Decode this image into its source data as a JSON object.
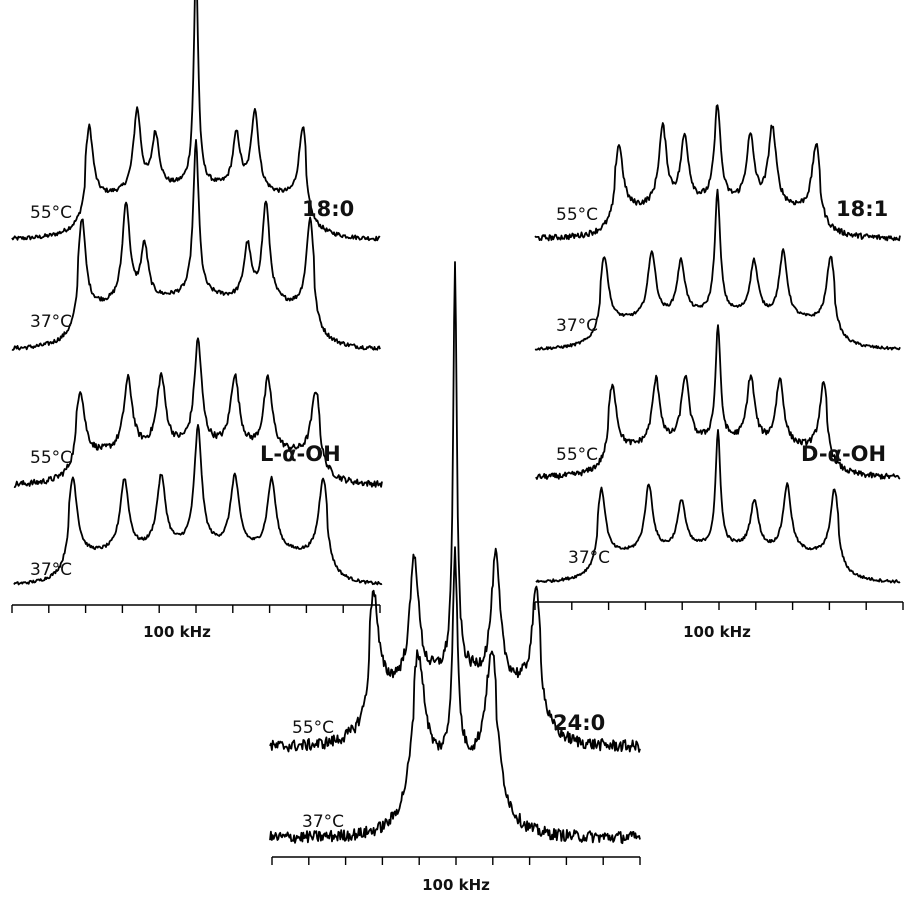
{
  "chart_data": [
    {
      "type": "line",
      "name": "18:0",
      "xlabel": "100 kHz",
      "major_ticks": 10,
      "spectra": [
        {
          "label": "55°C",
          "baseline": 0.02,
          "noise": 0.006,
          "peaks": [
            {
              "x": -0.29,
              "h": 0.4,
              "w": 0.012
            },
            {
              "x": -0.16,
              "h": 0.45,
              "w": 0.012
            },
            {
              "x": -0.11,
              "h": 0.3,
              "w": 0.012
            },
            {
              "x": 0.0,
              "h": 1.25,
              "w": 0.007
            },
            {
              "x": 0.11,
              "h": 0.3,
              "w": 0.012
            },
            {
              "x": 0.16,
              "h": 0.45,
              "w": 0.012
            },
            {
              "x": 0.29,
              "h": 0.4,
              "w": 0.012
            }
          ]
        },
        {
          "label": "37°C",
          "baseline": 0.02,
          "noise": 0.006,
          "peaks": [
            {
              "x": -0.31,
              "h": 0.5,
              "w": 0.012
            },
            {
              "x": -0.19,
              "h": 0.55,
              "w": 0.012
            },
            {
              "x": -0.14,
              "h": 0.3,
              "w": 0.012
            },
            {
              "x": 0.0,
              "h": 0.85,
              "w": 0.009
            },
            {
              "x": 0.14,
              "h": 0.3,
              "w": 0.012
            },
            {
              "x": 0.19,
              "h": 0.55,
              "w": 0.012
            },
            {
              "x": 0.31,
              "h": 0.5,
              "w": 0.012
            }
          ]
        }
      ]
    },
    {
      "type": "line",
      "name": "L-α-OH",
      "xlabel": "100 kHz",
      "major_ticks": 10,
      "spectra": [
        {
          "label": "55°C",
          "baseline": 0.02,
          "noise": 0.012,
          "peaks": [
            {
              "x": -0.32,
              "h": 0.5,
              "w": 0.014
            },
            {
              "x": -0.19,
              "h": 0.55,
              "w": 0.014
            },
            {
              "x": -0.1,
              "h": 0.55,
              "w": 0.014
            },
            {
              "x": 0.0,
              "h": 0.8,
              "w": 0.012
            },
            {
              "x": 0.1,
              "h": 0.55,
              "w": 0.014
            },
            {
              "x": 0.19,
              "h": 0.55,
              "w": 0.014
            },
            {
              "x": 0.32,
              "h": 0.5,
              "w": 0.014
            }
          ]
        },
        {
          "label": "37°C",
          "baseline": 0.02,
          "noise": 0.006,
          "peaks": [
            {
              "x": -0.34,
              "h": 0.6,
              "w": 0.014
            },
            {
              "x": -0.2,
              "h": 0.55,
              "w": 0.014
            },
            {
              "x": -0.1,
              "h": 0.55,
              "w": 0.014
            },
            {
              "x": 0.0,
              "h": 0.9,
              "w": 0.012
            },
            {
              "x": 0.1,
              "h": 0.55,
              "w": 0.014
            },
            {
              "x": 0.2,
              "h": 0.55,
              "w": 0.014
            },
            {
              "x": 0.34,
              "h": 0.6,
              "w": 0.014
            }
          ]
        }
      ]
    },
    {
      "type": "line",
      "name": "18:1",
      "xlabel": "100 kHz",
      "major_ticks": 10,
      "spectra": [
        {
          "label": "55°C",
          "baseline": 0.02,
          "noise": 0.012,
          "peaks": [
            {
              "x": -0.27,
              "h": 0.55,
              "w": 0.013
            },
            {
              "x": -0.15,
              "h": 0.65,
              "w": 0.013
            },
            {
              "x": -0.09,
              "h": 0.55,
              "w": 0.013
            },
            {
              "x": 0.0,
              "h": 0.8,
              "w": 0.01
            },
            {
              "x": 0.09,
              "h": 0.55,
              "w": 0.013
            },
            {
              "x": 0.15,
              "h": 0.65,
              "w": 0.013
            },
            {
              "x": 0.27,
              "h": 0.55,
              "w": 0.013
            }
          ]
        },
        {
          "label": "37°C",
          "baseline": 0.02,
          "noise": 0.006,
          "peaks": [
            {
              "x": -0.31,
              "h": 0.55,
              "w": 0.013
            },
            {
              "x": -0.18,
              "h": 0.55,
              "w": 0.013
            },
            {
              "x": -0.1,
              "h": 0.45,
              "w": 0.013
            },
            {
              "x": 0.0,
              "h": 1.0,
              "w": 0.009
            },
            {
              "x": 0.1,
              "h": 0.45,
              "w": 0.013
            },
            {
              "x": 0.18,
              "h": 0.55,
              "w": 0.013
            },
            {
              "x": 0.31,
              "h": 0.55,
              "w": 0.013
            }
          ]
        }
      ]
    },
    {
      "type": "line",
      "name": "D-α-OH",
      "xlabel": "100 kHz",
      "major_ticks": 10,
      "spectra": [
        {
          "label": "55°C",
          "baseline": 0.02,
          "noise": 0.012,
          "peaks": [
            {
              "x": -0.29,
              "h": 0.55,
              "w": 0.013
            },
            {
              "x": -0.17,
              "h": 0.55,
              "w": 0.013
            },
            {
              "x": -0.09,
              "h": 0.55,
              "w": 0.013
            },
            {
              "x": 0.0,
              "h": 0.95,
              "w": 0.008
            },
            {
              "x": 0.09,
              "h": 0.55,
              "w": 0.013
            },
            {
              "x": 0.17,
              "h": 0.55,
              "w": 0.013
            },
            {
              "x": 0.29,
              "h": 0.55,
              "w": 0.013
            }
          ]
        },
        {
          "label": "37°C",
          "baseline": 0.02,
          "noise": 0.006,
          "peaks": [
            {
              "x": -0.32,
              "h": 0.55,
              "w": 0.013
            },
            {
              "x": -0.19,
              "h": 0.55,
              "w": 0.013
            },
            {
              "x": -0.1,
              "h": 0.4,
              "w": 0.013
            },
            {
              "x": 0.0,
              "h": 0.95,
              "w": 0.008
            },
            {
              "x": 0.1,
              "h": 0.4,
              "w": 0.013
            },
            {
              "x": 0.19,
              "h": 0.55,
              "w": 0.013
            },
            {
              "x": 0.32,
              "h": 0.55,
              "w": 0.013
            }
          ]
        }
      ]
    },
    {
      "type": "line",
      "name": "24:0",
      "xlabel": "100 kHz",
      "major_ticks": 10,
      "spectra": [
        {
          "label": "55°C",
          "baseline": 0.02,
          "noise": 0.012,
          "peaks": [
            {
              "x": -0.22,
              "h": 0.4,
              "w": 0.014
            },
            {
              "x": -0.11,
              "h": 0.5,
              "w": 0.014
            },
            {
              "x": 0.0,
              "h": 1.6,
              "w": 0.006
            },
            {
              "x": 0.11,
              "h": 0.5,
              "w": 0.014
            },
            {
              "x": 0.22,
              "h": 0.4,
              "w": 0.014
            }
          ]
        },
        {
          "label": "37°C",
          "baseline": 0.02,
          "noise": 0.012,
          "peaks": [
            {
              "x": -0.1,
              "h": 0.5,
              "w": 0.022
            },
            {
              "x": 0.0,
              "h": 0.8,
              "w": 0.008
            },
            {
              "x": 0.1,
              "h": 0.5,
              "w": 0.022
            }
          ]
        }
      ]
    }
  ]
}
